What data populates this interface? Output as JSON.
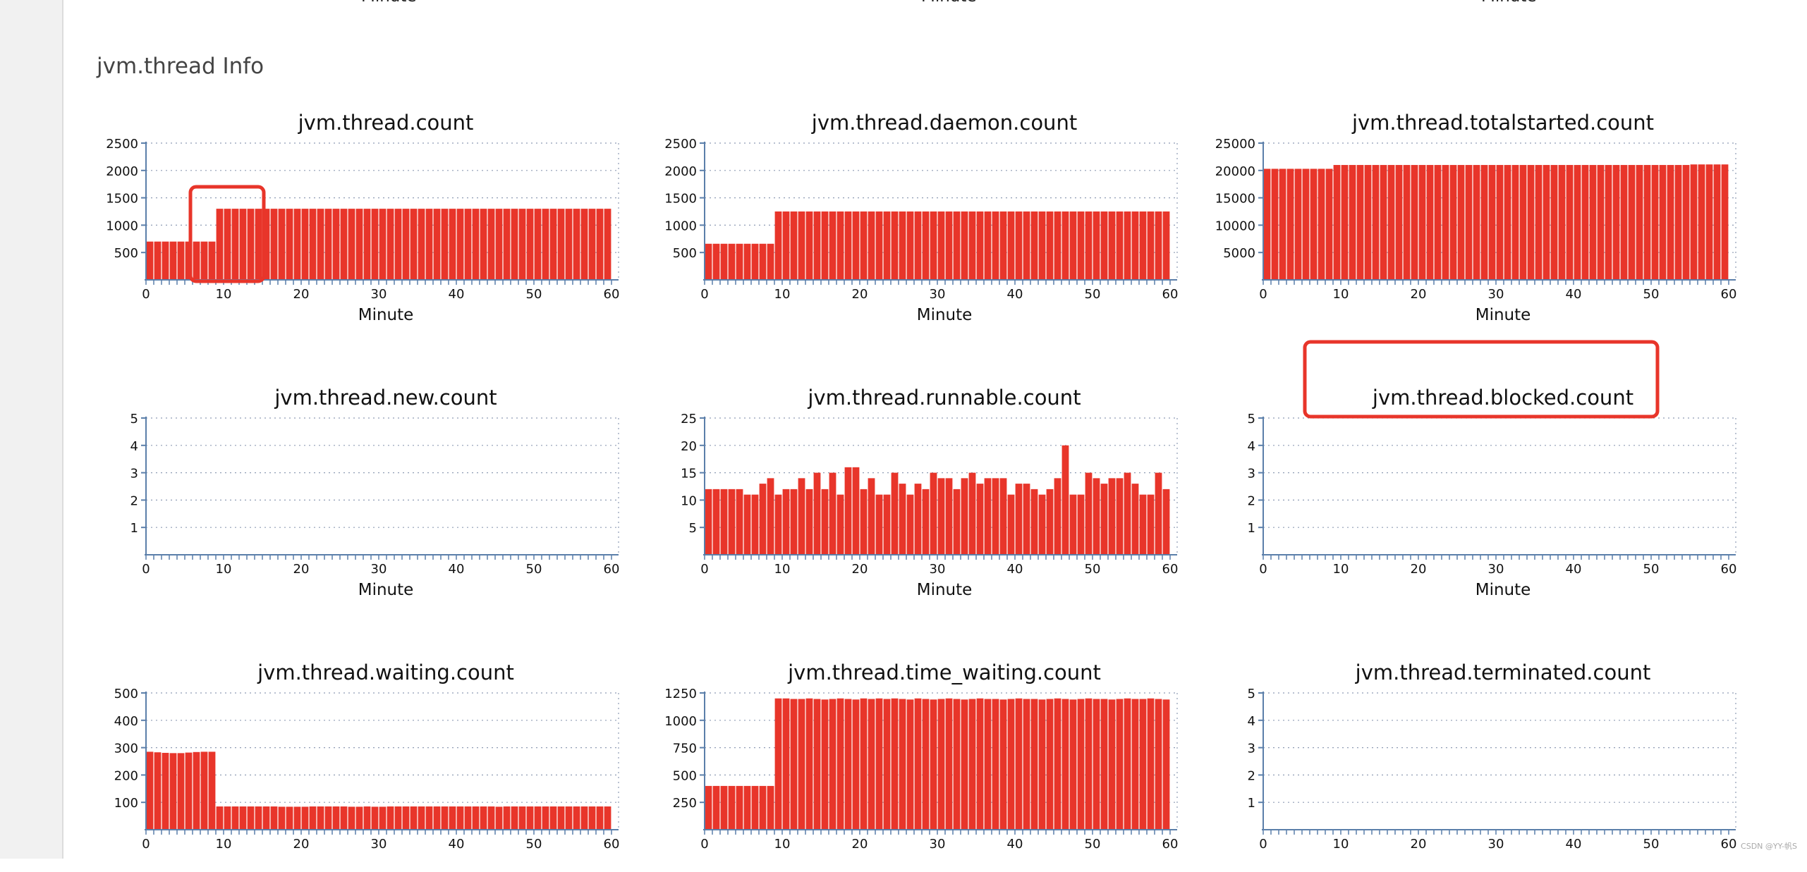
{
  "section_title": "jvm.thread Info",
  "top_cut_label": "Minute",
  "watermark": "CSDN @YY-帆S",
  "colors": {
    "bar": "#e8352a",
    "axis": "#5b7faa",
    "grid": "#8e9bb3",
    "highlight": "#e8352a"
  },
  "chart_data": [
    {
      "type": "bar",
      "title": "jvm.thread.count",
      "xlabel": "Minute",
      "ylabel": "",
      "xlim": [
        0,
        60
      ],
      "xticks": [
        0,
        10,
        20,
        30,
        40,
        50,
        60
      ],
      "ylim": [
        0,
        2500
      ],
      "yticks": [
        500,
        1000,
        1500,
        2000,
        2500
      ],
      "values": [
        700,
        700,
        700,
        700,
        700,
        700,
        700,
        700,
        700,
        1300,
        1300,
        1300,
        1300,
        1300,
        1300,
        1300,
        1300,
        1300,
        1300,
        1300,
        1300,
        1300,
        1300,
        1300,
        1300,
        1300,
        1300,
        1300,
        1300,
        1300,
        1300,
        1300,
        1300,
        1300,
        1300,
        1300,
        1300,
        1300,
        1300,
        1300,
        1300,
        1300,
        1300,
        1300,
        1300,
        1300,
        1300,
        1300,
        1300,
        1300,
        1300,
        1300,
        1300,
        1300,
        1300,
        1300,
        1300,
        1300,
        1300,
        1300
      ]
    },
    {
      "type": "bar",
      "title": "jvm.thread.daemon.count",
      "xlabel": "Minute",
      "ylabel": "",
      "xlim": [
        0,
        60
      ],
      "xticks": [
        0,
        10,
        20,
        30,
        40,
        50,
        60
      ],
      "ylim": [
        0,
        2500
      ],
      "yticks": [
        500,
        1000,
        1500,
        2000,
        2500
      ],
      "values": [
        660,
        660,
        660,
        660,
        660,
        660,
        660,
        660,
        660,
        1250,
        1250,
        1250,
        1250,
        1250,
        1250,
        1250,
        1250,
        1250,
        1250,
        1250,
        1250,
        1250,
        1250,
        1250,
        1250,
        1250,
        1250,
        1250,
        1250,
        1250,
        1250,
        1250,
        1250,
        1250,
        1250,
        1250,
        1250,
        1250,
        1250,
        1250,
        1250,
        1250,
        1250,
        1250,
        1250,
        1250,
        1250,
        1250,
        1250,
        1250,
        1250,
        1250,
        1250,
        1250,
        1250,
        1250,
        1250,
        1250,
        1250,
        1250
      ]
    },
    {
      "type": "bar",
      "title": "jvm.thread.totalstarted.count",
      "xlabel": "Minute",
      "ylabel": "",
      "xlim": [
        0,
        60
      ],
      "xticks": [
        0,
        10,
        20,
        30,
        40,
        50,
        60
      ],
      "ylim": [
        0,
        25000
      ],
      "yticks": [
        5000,
        10000,
        15000,
        20000,
        25000
      ],
      "values": [
        20300,
        20300,
        20300,
        20300,
        20300,
        20300,
        20300,
        20300,
        20300,
        21000,
        21000,
        21000,
        21000,
        21000,
        21000,
        21000,
        21000,
        21000,
        21000,
        21000,
        21000,
        21000,
        21000,
        21000,
        21000,
        21000,
        21000,
        21000,
        21000,
        21000,
        21000,
        21000,
        21000,
        21000,
        21000,
        21000,
        21000,
        21000,
        21000,
        21000,
        21000,
        21000,
        21000,
        21000,
        21000,
        21000,
        21000,
        21000,
        21000,
        21000,
        21000,
        21000,
        21000,
        21000,
        21000,
        21100,
        21100,
        21100,
        21100,
        21100
      ]
    },
    {
      "type": "bar",
      "title": "jvm.thread.new.count",
      "xlabel": "Minute",
      "ylabel": "",
      "xlim": [
        0,
        60
      ],
      "xticks": [
        0,
        10,
        20,
        30,
        40,
        50,
        60
      ],
      "ylim": [
        0,
        5
      ],
      "yticks": [
        1,
        2,
        3,
        4,
        5
      ],
      "values": []
    },
    {
      "type": "bar",
      "title": "jvm.thread.runnable.count",
      "xlabel": "Minute",
      "ylabel": "",
      "xlim": [
        0,
        60
      ],
      "xticks": [
        0,
        10,
        20,
        30,
        40,
        50,
        60
      ],
      "ylim": [
        0,
        25
      ],
      "yticks": [
        5,
        10,
        15,
        20,
        25
      ],
      "values": [
        12,
        12,
        12,
        12,
        12,
        11,
        11,
        13,
        14,
        11,
        12,
        12,
        14,
        12,
        15,
        12,
        15,
        11,
        16,
        16,
        12,
        14,
        11,
        11,
        15,
        13,
        11,
        13,
        12,
        15,
        14,
        14,
        12,
        14,
        15,
        13,
        14,
        14,
        14,
        11,
        13,
        13,
        12,
        11,
        12,
        14,
        20,
        11,
        11,
        15,
        14,
        13,
        14,
        14,
        15,
        13,
        11,
        11,
        15,
        12
      ]
    },
    {
      "type": "bar",
      "title": "jvm.thread.blocked.count",
      "xlabel": "Minute",
      "ylabel": "",
      "xlim": [
        0,
        60
      ],
      "xticks": [
        0,
        10,
        20,
        30,
        40,
        50,
        60
      ],
      "ylim": [
        0,
        5
      ],
      "yticks": [
        1,
        2,
        3,
        4,
        5
      ],
      "values": []
    },
    {
      "type": "bar",
      "title": "jvm.thread.waiting.count",
      "xlabel": "",
      "ylabel": "",
      "xlim": [
        0,
        60
      ],
      "xticks": [
        0,
        10,
        20,
        30,
        40,
        50,
        60
      ],
      "ylim": [
        0,
        500
      ],
      "yticks": [
        100,
        200,
        300,
        400,
        500
      ],
      "values": [
        285,
        283,
        281,
        280,
        280,
        282,
        284,
        285,
        285,
        85,
        85,
        85,
        85,
        85,
        85,
        85,
        85,
        84,
        84,
        84,
        84,
        85,
        85,
        85,
        85,
        85,
        84,
        84,
        85,
        84,
        84,
        85,
        85,
        85,
        85,
        85,
        85,
        85,
        85,
        85,
        85,
        85,
        85,
        85,
        85,
        84,
        85,
        85,
        85,
        85,
        85,
        85,
        85,
        85,
        85,
        85,
        85,
        85,
        85,
        85
      ]
    },
    {
      "type": "bar",
      "title": "jvm.thread.time_waiting.count",
      "xlabel": "",
      "ylabel": "",
      "xlim": [
        0,
        60
      ],
      "xticks": [
        0,
        10,
        20,
        30,
        40,
        50,
        60
      ],
      "ylim": [
        0,
        1250
      ],
      "yticks": [
        250,
        500,
        750,
        1000,
        1250
      ],
      "values": [
        400,
        400,
        400,
        400,
        400,
        400,
        400,
        400,
        400,
        1200,
        1200,
        1195,
        1195,
        1200,
        1195,
        1190,
        1195,
        1200,
        1195,
        1190,
        1200,
        1195,
        1200,
        1195,
        1200,
        1195,
        1190,
        1200,
        1195,
        1190,
        1195,
        1200,
        1195,
        1190,
        1195,
        1200,
        1195,
        1195,
        1190,
        1195,
        1200,
        1195,
        1195,
        1190,
        1195,
        1200,
        1195,
        1190,
        1195,
        1200,
        1195,
        1195,
        1190,
        1195,
        1200,
        1195,
        1195,
        1200,
        1195,
        1190
      ]
    },
    {
      "type": "bar",
      "title": "jvm.thread.terminated.count",
      "xlabel": "",
      "ylabel": "",
      "xlim": [
        0,
        60
      ],
      "xticks": [
        0,
        10,
        20,
        30,
        40,
        50,
        60
      ],
      "ylim": [
        0,
        5
      ],
      "yticks": [
        1,
        2,
        3,
        4,
        5
      ],
      "values": []
    }
  ]
}
